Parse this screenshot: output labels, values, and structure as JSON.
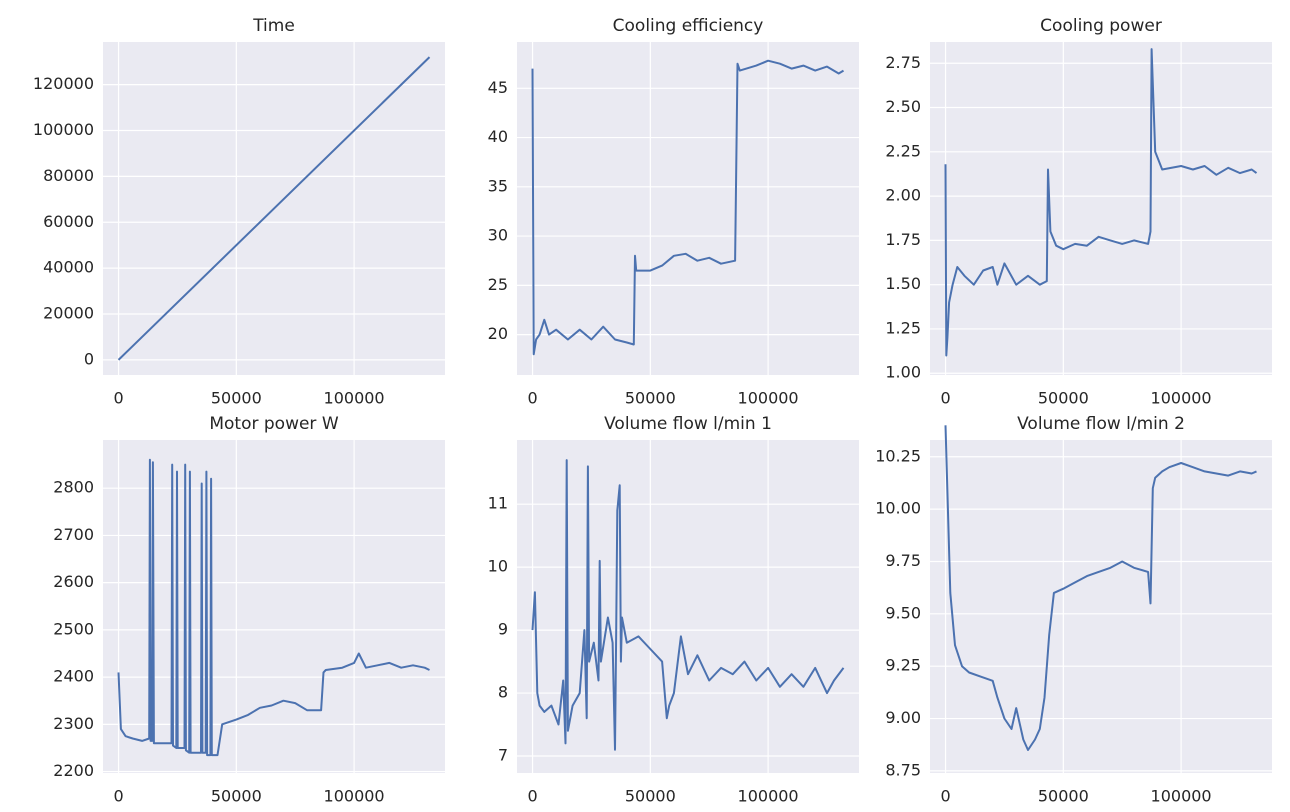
{
  "chart_data": [
    {
      "type": "line",
      "title": "Time",
      "color": "#4c72b0",
      "grid": true,
      "x": [
        0,
        132000
      ],
      "values": [
        0,
        132000
      ],
      "xlim": [
        -6600,
        138600
      ],
      "xticks": [
        0,
        50000,
        100000
      ],
      "ylim": [
        -6600,
        138600
      ],
      "yticks": [
        0,
        20000,
        40000,
        60000,
        80000,
        100000,
        120000
      ]
    },
    {
      "type": "line",
      "title": "Cooling efficiency",
      "color": "#4c72b0",
      "grid": true,
      "x": [
        0,
        500,
        1500,
        3000,
        5000,
        7000,
        10000,
        15000,
        20000,
        25000,
        30000,
        35000,
        40000,
        43000,
        43500,
        44000,
        50000,
        55000,
        60000,
        65000,
        70000,
        75000,
        80000,
        86000,
        87000,
        88000,
        95000,
        100000,
        105000,
        110000,
        115000,
        120000,
        125000,
        130000,
        132000
      ],
      "values": [
        47,
        18,
        19.5,
        20,
        21.5,
        20,
        20.5,
        19.5,
        20.5,
        19.5,
        20.8,
        19.5,
        19.2,
        19,
        28,
        26.5,
        26.5,
        27,
        28,
        28.2,
        27.5,
        27.8,
        27.2,
        27.5,
        47.5,
        46.8,
        47.3,
        47.8,
        47.5,
        47,
        47.3,
        46.8,
        47.2,
        46.5,
        46.8
      ],
      "xlim": [
        -6600,
        138600
      ],
      "xticks": [
        0,
        50000,
        100000
      ],
      "ylim": [
        15.9,
        49.7
      ],
      "yticks": [
        20,
        25,
        30,
        35,
        40,
        45
      ]
    },
    {
      "type": "line",
      "title": "Cooling power",
      "color": "#4c72b0",
      "grid": true,
      "x": [
        0,
        300,
        800,
        1500,
        3000,
        5000,
        8000,
        12000,
        16000,
        20000,
        22000,
        25000,
        30000,
        35000,
        40000,
        43000,
        43500,
        44500,
        47000,
        50000,
        55000,
        60000,
        65000,
        70000,
        75000,
        80000,
        86000,
        87000,
        87500,
        89000,
        92000,
        100000,
        105000,
        110000,
        115000,
        120000,
        125000,
        130000,
        132000
      ],
      "values": [
        2.18,
        1.1,
        1.2,
        1.4,
        1.5,
        1.6,
        1.55,
        1.5,
        1.58,
        1.6,
        1.5,
        1.62,
        1.5,
        1.55,
        1.5,
        1.52,
        2.15,
        1.8,
        1.72,
        1.7,
        1.73,
        1.72,
        1.77,
        1.75,
        1.73,
        1.75,
        1.73,
        1.8,
        2.83,
        2.25,
        2.15,
        2.17,
        2.15,
        2.17,
        2.12,
        2.16,
        2.13,
        2.15,
        2.13
      ],
      "xlim": [
        -6600,
        138600
      ],
      "xticks": [
        0,
        50000,
        100000
      ],
      "ylim": [
        0.99,
        2.87
      ],
      "yticks": [
        {
          "value": 1,
          "label": "1.00"
        },
        {
          "value": 1.25,
          "label": "1.25"
        },
        {
          "value": 1.5,
          "label": "1.50"
        },
        {
          "value": 1.75,
          "label": "1.75"
        },
        {
          "value": 2,
          "label": "2.00"
        },
        {
          "value": 2.25,
          "label": "2.25"
        },
        {
          "value": 2.5,
          "label": "2.50"
        },
        {
          "value": 2.75,
          "label": "2.75"
        }
      ]
    },
    {
      "type": "line",
      "title": "Motor power W",
      "color": "#4c72b0",
      "grid": true,
      "x": [
        0,
        1000,
        3000,
        6000,
        10000,
        13000,
        13300,
        13600,
        14300,
        14600,
        15000,
        20000,
        22500,
        22800,
        23100,
        24500,
        24800,
        25100,
        28000,
        28300,
        28600,
        30000,
        30300,
        30600,
        35000,
        35300,
        35600,
        37000,
        37300,
        37600,
        39000,
        39300,
        39600,
        42000,
        44000,
        50000,
        55000,
        60000,
        65000,
        70000,
        75000,
        80000,
        86000,
        87000,
        88000,
        95000,
        100000,
        102000,
        105000,
        110000,
        115000,
        120000,
        125000,
        130000,
        132000
      ],
      "values": [
        2410,
        2290,
        2275,
        2270,
        2265,
        2270,
        2860,
        2265,
        2265,
        2855,
        2260,
        2260,
        2260,
        2850,
        2255,
        2250,
        2835,
        2250,
        2250,
        2850,
        2245,
        2240,
        2835,
        2240,
        2240,
        2810,
        2240,
        2240,
        2835,
        2235,
        2235,
        2820,
        2235,
        2235,
        2300,
        2310,
        2320,
        2335,
        2340,
        2350,
        2345,
        2330,
        2330,
        2410,
        2415,
        2420,
        2430,
        2450,
        2420,
        2425,
        2430,
        2420,
        2425,
        2420,
        2415
      ],
      "xlim": [
        -6600,
        138600
      ],
      "xticks": [
        0,
        50000,
        100000
      ],
      "ylim": [
        2197,
        2902
      ],
      "yticks": [
        2200,
        2300,
        2400,
        2500,
        2600,
        2700,
        2800
      ]
    },
    {
      "type": "line",
      "title": "Volume flow l/min 1",
      "color": "#4c72b0",
      "grid": true,
      "x": [
        0,
        1000,
        2000,
        3000,
        5000,
        8000,
        11000,
        13000,
        14000,
        14500,
        15000,
        17000,
        20000,
        22000,
        23000,
        23500,
        24000,
        26000,
        28000,
        28500,
        29000,
        32000,
        34000,
        35000,
        35500,
        36000,
        37000,
        37500,
        38000,
        40000,
        45000,
        50000,
        55000,
        57000,
        58000,
        60000,
        63000,
        66000,
        70000,
        75000,
        80000,
        85000,
        90000,
        95000,
        100000,
        105000,
        110000,
        115000,
        120000,
        125000,
        128000,
        132000
      ],
      "values": [
        9,
        9.6,
        8,
        7.8,
        7.7,
        7.8,
        7.5,
        8.2,
        7.2,
        11.7,
        7.4,
        7.8,
        8,
        9,
        7.6,
        11.6,
        8.5,
        8.8,
        8.2,
        10.1,
        8.5,
        9.2,
        8.8,
        7.1,
        9,
        10.9,
        11.3,
        8.5,
        9.2,
        8.8,
        8.9,
        8.7,
        8.5,
        7.6,
        7.8,
        8,
        8.9,
        8.3,
        8.6,
        8.2,
        8.4,
        8.3,
        8.5,
        8.2,
        8.4,
        8.1,
        8.3,
        8.1,
        8.4,
        8,
        8.2,
        8.4
      ],
      "xlim": [
        -6600,
        138600
      ],
      "xticks": [
        0,
        50000,
        100000
      ],
      "ylim": [
        6.73,
        12.02
      ],
      "yticks": [
        7,
        8,
        9,
        10,
        11
      ]
    },
    {
      "type": "line",
      "title": "Volume flow l/min 2",
      "color": "#4c72b0",
      "grid": true,
      "x": [
        0,
        500,
        2000,
        4000,
        7000,
        10000,
        15000,
        20000,
        22000,
        25000,
        28000,
        30000,
        33000,
        35000,
        38000,
        40000,
        42000,
        44000,
        46000,
        50000,
        55000,
        60000,
        65000,
        70000,
        75000,
        80000,
        86000,
        87000,
        88000,
        89000,
        92000,
        95000,
        100000,
        105000,
        110000,
        115000,
        120000,
        125000,
        130000,
        132000
      ],
      "values": [
        10.4,
        10.2,
        9.6,
        9.35,
        9.25,
        9.22,
        9.2,
        9.18,
        9.1,
        9,
        8.95,
        9.05,
        8.9,
        8.85,
        8.9,
        8.95,
        9.1,
        9.4,
        9.6,
        9.62,
        9.65,
        9.68,
        9.7,
        9.72,
        9.75,
        9.72,
        9.7,
        9.55,
        10.1,
        10.15,
        10.18,
        10.2,
        10.22,
        10.2,
        10.18,
        10.17,
        10.16,
        10.18,
        10.17,
        10.18
      ],
      "xlim": [
        -6600,
        138600
      ],
      "xticks": [
        0,
        50000,
        100000
      ],
      "ylim": [
        8.74,
        10.33
      ],
      "yticks": [
        {
          "value": 8.75,
          "label": "8.75"
        },
        {
          "value": 9,
          "label": "9.00"
        },
        {
          "value": 9.25,
          "label": "9.25"
        },
        {
          "value": 9.5,
          "label": "9.50"
        },
        {
          "value": 9.75,
          "label": "9.75"
        },
        {
          "value": 10,
          "label": "10.00"
        },
        {
          "value": 10.25,
          "label": "10.25"
        }
      ]
    }
  ]
}
